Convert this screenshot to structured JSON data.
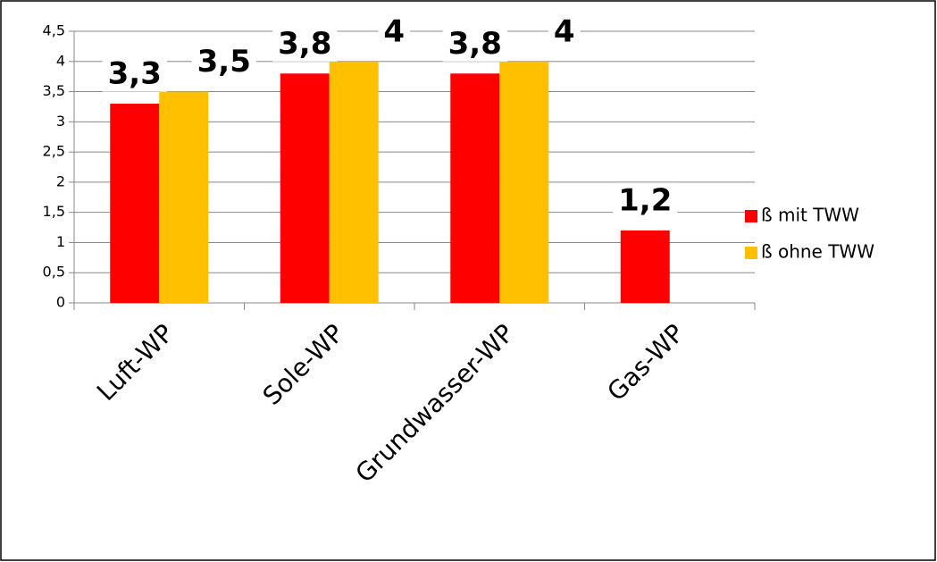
{
  "chart_data": {
    "type": "bar",
    "categories": [
      "Luft-WP",
      "Sole-WP",
      "Grundwasser-WP",
      "Gas-WP"
    ],
    "series": [
      {
        "name": "ß mit TWW",
        "color": "#ff0000",
        "values": [
          3.3,
          3.8,
          3.8,
          1.2
        ],
        "value_labels": [
          "3,3",
          "3,8",
          "3,8",
          "1,2"
        ]
      },
      {
        "name": "ß ohne TWW",
        "color": "#ffc000",
        "values": [
          3.5,
          4,
          4,
          null
        ],
        "value_labels": [
          "3,5",
          "4",
          "4",
          null
        ]
      }
    ],
    "ylim": [
      0,
      4.5
    ],
    "yticks": [
      0,
      {
        "value": 0.5,
        "label": "0,5"
      },
      1,
      {
        "value": 1.5,
        "label": "1,5"
      },
      2,
      {
        "value": 2.5,
        "label": "2,5"
      },
      3,
      {
        "value": 3.5,
        "label": "3,5"
      },
      4,
      {
        "value": 4.5,
        "label": "4,5"
      }
    ],
    "grid": true,
    "legend": "right"
  }
}
